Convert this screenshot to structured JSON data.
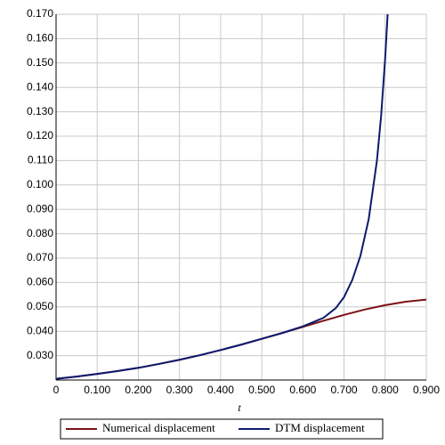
{
  "chart_data": {
    "type": "line",
    "x_label": "t",
    "xlim": [
      0,
      0.9
    ],
    "ylim": [
      0.02,
      0.17
    ],
    "xticks": [
      0,
      {
        "value": 0.1,
        "label": "0.100"
      },
      {
        "value": 0.2,
        "label": "0.200"
      },
      {
        "value": 0.3,
        "label": "0.300"
      },
      {
        "value": 0.4,
        "label": "0.400"
      },
      {
        "value": 0.5,
        "label": "0.500"
      },
      {
        "value": 0.6,
        "label": "0.600"
      },
      {
        "value": 0.7,
        "label": "0.700"
      },
      {
        "value": 0.8,
        "label": "0.800"
      },
      {
        "value": 0.9,
        "label": "0.900"
      }
    ],
    "yticks": [
      {
        "value": 0.03,
        "label": "0.030"
      },
      {
        "value": 0.04,
        "label": "0.040"
      },
      {
        "value": 0.05,
        "label": "0.050"
      },
      {
        "value": 0.06,
        "label": "0.060"
      },
      {
        "value": 0.07,
        "label": "0.070"
      },
      {
        "value": 0.08,
        "label": "0.080"
      },
      {
        "value": 0.09,
        "label": "0.090"
      },
      {
        "value": 0.1,
        "label": "0.100"
      },
      {
        "value": 0.11,
        "label": "0.110"
      },
      {
        "value": 0.12,
        "label": "0.120"
      },
      {
        "value": 0.13,
        "label": "0.130"
      },
      {
        "value": 0.14,
        "label": "0.140"
      },
      {
        "value": 0.15,
        "label": "0.150"
      },
      {
        "value": 0.16,
        "label": "0.160"
      },
      {
        "value": 0.17,
        "label": "0.170"
      }
    ],
    "grid": true,
    "series": [
      {
        "name": "Numerical displacement",
        "color": "#7b1216",
        "x": [
          0,
          0.05,
          0.1,
          0.15,
          0.2,
          0.25,
          0.3,
          0.35,
          0.4,
          0.45,
          0.5,
          0.55,
          0.6,
          0.65,
          0.7,
          0.75,
          0.8,
          0.85,
          0.9
        ],
        "values": [
          0.0205,
          0.0214,
          0.0225,
          0.0237,
          0.025,
          0.0266,
          0.0283,
          0.0302,
          0.0323,
          0.0345,
          0.0369,
          0.0393,
          0.0418,
          0.0443,
          0.0467,
          0.0489,
          0.0507,
          0.0521,
          0.053
        ]
      },
      {
        "name": "DTM displacement",
        "color": "#0c1a6e",
        "x": [
          0,
          0.05,
          0.1,
          0.15,
          0.2,
          0.25,
          0.3,
          0.35,
          0.4,
          0.45,
          0.5,
          0.55,
          0.6,
          0.65,
          0.68,
          0.7,
          0.72,
          0.74,
          0.76,
          0.78,
          0.79,
          0.8,
          0.806
        ],
        "values": [
          0.0205,
          0.0214,
          0.0225,
          0.0237,
          0.025,
          0.0266,
          0.0283,
          0.0302,
          0.0323,
          0.0345,
          0.0369,
          0.0393,
          0.042,
          0.0455,
          0.0495,
          0.054,
          0.061,
          0.071,
          0.086,
          0.11,
          0.128,
          0.152,
          0.17
        ]
      }
    ]
  }
}
